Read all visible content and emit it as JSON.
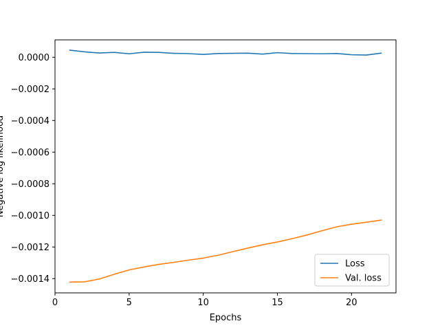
{
  "chart_data": {
    "type": "line",
    "title": "",
    "xlabel": "Epochs",
    "ylabel": "Negative log likelihood",
    "xlim": [
      0,
      23
    ],
    "ylim": [
      -0.00149,
      0.00011
    ],
    "xticks": [
      0,
      5,
      10,
      15,
      20
    ],
    "xtick_labels": [
      "0",
      "5",
      "10",
      "15",
      "20"
    ],
    "yticks": [
      0.0,
      -0.0002,
      -0.0004,
      -0.0006,
      -0.0008,
      -0.001,
      -0.0012,
      -0.0014
    ],
    "ytick_labels": [
      "0.0000",
      "−0.0002",
      "−0.0004",
      "−0.0006",
      "−0.0008",
      "−0.0010",
      "−0.0012",
      "−0.0014"
    ],
    "grid": false,
    "legend": "lower-right",
    "x": [
      1,
      2,
      3,
      4,
      5,
      6,
      7,
      8,
      9,
      10,
      11,
      12,
      13,
      14,
      15,
      16,
      17,
      18,
      19,
      20,
      21,
      22
    ],
    "series": [
      {
        "name": "Loss",
        "color": "#1f77b4",
        "values": [
          4.5e-05,
          3.4e-05,
          2.7e-05,
          3.1e-05,
          2.2e-05,
          3.2e-05,
          3.1e-05,
          2.5e-05,
          2.3e-05,
          1.8e-05,
          2.4e-05,
          2.5e-05,
          2.6e-05,
          2e-05,
          2.9e-05,
          2.4e-05,
          2.3e-05,
          2.2e-05,
          2.4e-05,
          1.6e-05,
          1.4e-05,
          2.6e-05
        ]
      },
      {
        "name": "Val. loss",
        "color": "#ff7f0e",
        "values": [
          -0.001422,
          -0.00142,
          -0.001402,
          -0.001372,
          -0.001345,
          -0.001326,
          -0.00131,
          -0.001297,
          -0.001283,
          -0.00127,
          -0.001252,
          -0.001229,
          -0.001207,
          -0.001186,
          -0.001168,
          -0.001147,
          -0.001124,
          -0.001097,
          -0.001072,
          -0.001056,
          -0.001043,
          -0.00103
        ]
      }
    ]
  }
}
